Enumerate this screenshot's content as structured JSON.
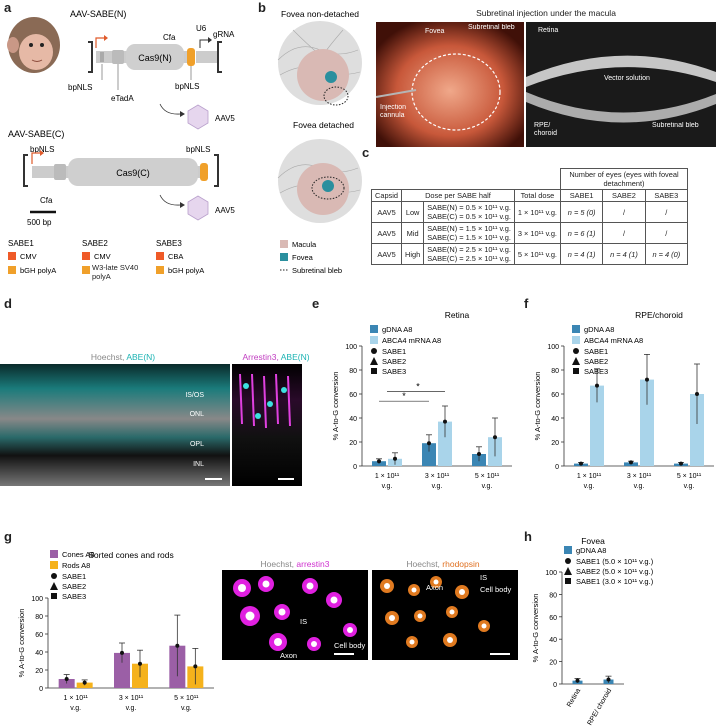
{
  "figure_labels": {
    "a": "a",
    "b": "b",
    "c": "c",
    "d": "d",
    "e": "e",
    "f": "f",
    "g": "g",
    "h": "h"
  },
  "panel_a": {
    "construct_n_title": "AAV-SABE(N)",
    "construct_c_title": "AAV-SABE(C)",
    "cfa_n": "Cfa",
    "u6": "U6",
    "grna": "gRNA",
    "cas9n": "Cas9(N)",
    "bpnls_left": "bpNLS",
    "etada": "eTadA",
    "bpnls_right": "bpNLS",
    "aav5_top": "AAV5",
    "bpnls_c_left": "bpNLS",
    "bpnls_c_right": "bpNLS",
    "cas9c": "Cas9(C)",
    "cfa_c": "Cfa",
    "scale": "500 bp",
    "aav5_bottom": "AAV5",
    "legend": [
      {
        "name": "SABE1",
        "promoter": "CMV",
        "polya": "bGH polyA",
        "promoter_color": "#ef5a28",
        "polya_color": "#f0a02a"
      },
      {
        "name": "SABE2",
        "promoter": "CMV",
        "polya": "W3-late SV40 polyA",
        "promoter_color": "#ef5a28",
        "polya_color": "#f0a02a"
      },
      {
        "name": "SABE3",
        "promoter": "CBA",
        "polya": "bGH polyA",
        "promoter_color": "#ef5a28",
        "polya_color": "#f0a02a"
      }
    ]
  },
  "panel_b": {
    "left_title_top": "Fovea non-detached",
    "left_title_bottom": "Fovea detached",
    "photo_title": "Subretinal injection under the macula",
    "fundus_labels": {
      "fovea": "Fovea",
      "bleb": "Subretinal bleb",
      "cannula": "Injection cannula"
    },
    "oct_labels": {
      "retina": "Retina",
      "vector": "Vector solution",
      "rpe": "RPE/ choroid",
      "bleb": "Subretinal bleb"
    },
    "legend": [
      {
        "label": "Macula",
        "color": "#d9b9b4"
      },
      {
        "label": "Fovea",
        "color": "#2a8f9e"
      },
      {
        "label": "Subretinal bleb",
        "color": "#222222"
      }
    ]
  },
  "panel_c": {
    "group_header": "Number of eyes (eyes with foveal detachment)",
    "headers": [
      "Capsid",
      "Dose per SABE half",
      "Total dose",
      "SABE1",
      "SABE2",
      "SABE3"
    ],
    "rows": [
      {
        "capsid": "AAV5",
        "level": "Low",
        "dose_n": "SABE(N) = 0.5 × 10¹¹ v.g.",
        "dose_c": "SABE(C) = 0.5 × 10¹¹ v.g.",
        "total": "1 × 10¹¹ v.g.",
        "s1": "n = 5 (0)",
        "s2": "/",
        "s3": "/"
      },
      {
        "capsid": "AAV5",
        "level": "Mid",
        "dose_n": "SABE(N) = 1.5 × 10¹¹ v.g.",
        "dose_c": "SABE(C) = 1.5 × 10¹¹ v.g.",
        "total": "3 × 10¹¹ v.g.",
        "s1": "n = 6 (1)",
        "s2": "/",
        "s3": "/"
      },
      {
        "capsid": "AAV5",
        "level": "High",
        "dose_n": "SABE(N) = 2.5 × 10¹¹ v.g.",
        "dose_c": "SABE(C) = 2.5 × 10¹¹ v.g.",
        "total": "5 × 10¹¹ v.g.",
        "s1": "n = 4 (1)",
        "s2": "n = 4 (1)",
        "s3": "n = 4 (0)"
      }
    ]
  },
  "panel_d": {
    "left_title_a": "Hoechst, ",
    "left_title_b": "ABE(N)",
    "right_title_a": "Arrestin3, ",
    "right_title_b": "ABE(N)",
    "layers": [
      "IS/OS",
      "ONL",
      "OPL",
      "INL"
    ]
  },
  "panel_g_images": {
    "left_title_a": "Hoechst, ",
    "left_title_b": "arrestin3",
    "right_title_a": "Hoechst, ",
    "right_title_b": "rhodopsin",
    "left_labels": {
      "is": "IS",
      "axon": "Axon",
      "cell_body": "Cell body"
    },
    "right_labels": {
      "axon": "Axon",
      "is": "IS",
      "cell_body": "Cell body"
    }
  },
  "chart_data": [
    {
      "id": "e",
      "type": "bar",
      "title": "Retina",
      "ylabel": "% A-to-G conversion",
      "ylim": [
        0,
        100
      ],
      "yticks": [
        0,
        20,
        40,
        60,
        80,
        100
      ],
      "categories": [
        "1 × 10¹¹ v.g.",
        "3 × 10¹¹ v.g.",
        "5 × 10¹¹ v.g."
      ],
      "series": [
        {
          "name": "gDNA A8",
          "color": "#3b86b4",
          "values": [
            4,
            19,
            10
          ],
          "err": [
            2,
            7,
            6
          ]
        },
        {
          "name": "ABCA4 mRNA A8",
          "color": "#a9d4ea",
          "values": [
            6,
            37,
            24
          ],
          "err": [
            5,
            13,
            16
          ]
        }
      ],
      "markers": [
        "SABE1",
        "SABE2",
        "SABE3"
      ],
      "significance": [
        {
          "label": "*"
        },
        {
          "label": "*"
        }
      ]
    },
    {
      "id": "f",
      "type": "bar",
      "title": "RPE/choroid",
      "ylabel": "% A-to-G conversion",
      "ylim": [
        0,
        100
      ],
      "yticks": [
        0,
        20,
        40,
        60,
        80,
        100
      ],
      "categories": [
        "1 × 10¹¹ v.g.",
        "3 × 10¹¹ v.g.",
        "5 × 10¹¹ v.g."
      ],
      "series": [
        {
          "name": "gDNA A8",
          "color": "#3b86b4",
          "values": [
            2,
            3,
            2
          ],
          "err": [
            1,
            1,
            1
          ]
        },
        {
          "name": "ABCA4 mRNA A8",
          "color": "#a9d4ea",
          "values": [
            67,
            72,
            60
          ],
          "err": [
            14,
            21,
            25
          ]
        }
      ],
      "markers": [
        "SABE1",
        "SABE2",
        "SABE3"
      ]
    },
    {
      "id": "g",
      "type": "bar",
      "title": "Sorted cones and rods",
      "ylabel": "% A-to-G conversion",
      "ylim": [
        0,
        100
      ],
      "yticks": [
        0,
        20,
        40,
        60,
        80,
        100
      ],
      "categories": [
        "1 × 10¹¹ v.g.",
        "3 × 10¹¹ v.g.",
        "5 × 10¹¹ v.g."
      ],
      "series": [
        {
          "name": "Cones A8",
          "color": "#9b5fa6",
          "values": [
            10,
            39,
            47
          ],
          "err": [
            5,
            11,
            34
          ]
        },
        {
          "name": "Rods A8",
          "color": "#f5b21c",
          "values": [
            6,
            27,
            24
          ],
          "err": [
            3,
            15,
            20
          ]
        }
      ],
      "markers": [
        "SABE1",
        "SABE2",
        "SABE3"
      ]
    },
    {
      "id": "h",
      "type": "bar",
      "title": "Fovea",
      "ylabel": "% A-to-G conversion",
      "ylim": [
        0,
        100
      ],
      "yticks": [
        0,
        20,
        40,
        60,
        80,
        100
      ],
      "categories": [
        "Retina",
        "RPE/ choroid"
      ],
      "series": [
        {
          "name": "gDNA A8",
          "color": "#3b86b4",
          "values": [
            3,
            4
          ],
          "err": [
            2,
            3
          ]
        }
      ],
      "markers": [
        "SABE1 (5.0 × 10¹¹ v.g.)",
        "SABE2 (5.0 × 10¹¹ v.g.)",
        "SABE1 (3.0 × 10¹¹ v.g.)"
      ]
    }
  ]
}
